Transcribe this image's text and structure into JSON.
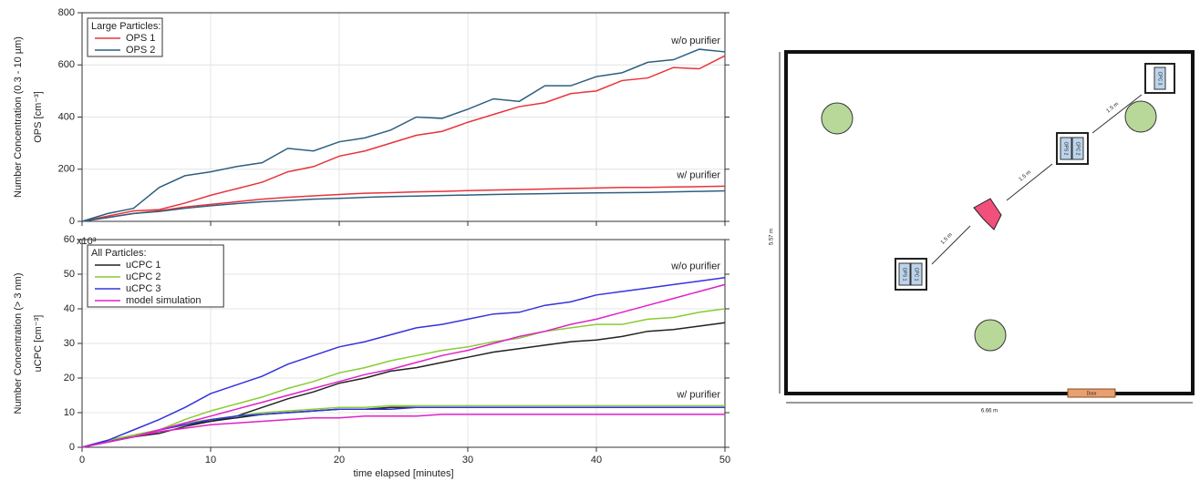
{
  "chart_data": [
    {
      "type": "line",
      "y_label": [
        "Number Concentration (0.3 - 10 µm)",
        "OPS [cm⁻³]"
      ],
      "legend_title": "Large Particles:",
      "legend": "upper left",
      "x": [
        0,
        2,
        4,
        6,
        8,
        10,
        12,
        14,
        16,
        18,
        20,
        22,
        24,
        26,
        28,
        30,
        32,
        34,
        36,
        38,
        40,
        42,
        44,
        46,
        48,
        50
      ],
      "xlim": [
        0,
        50
      ],
      "xticks": [
        0,
        10,
        20,
        30,
        40,
        50
      ],
      "show_xtick_labels": false,
      "ylim": [
        0,
        800
      ],
      "yticks": [
        0,
        200,
        400,
        600,
        800
      ],
      "grid": true,
      "annotations": {
        "without": "w/o purifier",
        "with": "w/ purifier"
      },
      "series": [
        {
          "name": "OPS 1",
          "color": "#e8333a",
          "values": [
            0,
            20,
            40,
            45,
            70,
            100,
            125,
            150,
            190,
            210,
            250,
            270,
            300,
            330,
            345,
            380,
            410,
            440,
            455,
            490,
            500,
            540,
            550,
            590,
            585,
            635
          ],
          "values_with_purifier": [
            0,
            15,
            30,
            40,
            55,
            65,
            75,
            85,
            92,
            98,
            103,
            108,
            110,
            113,
            115,
            118,
            120,
            122,
            124,
            126,
            128,
            130,
            130,
            132,
            133,
            135
          ]
        },
        {
          "name": "OPS 2",
          "color": "#2f5f7f",
          "values": [
            0,
            30,
            50,
            130,
            175,
            190,
            210,
            225,
            280,
            270,
            305,
            320,
            350,
            400,
            395,
            430,
            470,
            460,
            520,
            520,
            555,
            570,
            610,
            620,
            660,
            650
          ],
          "values_with_purifier": [
            0,
            15,
            30,
            38,
            50,
            60,
            68,
            75,
            80,
            85,
            88,
            92,
            95,
            97,
            99,
            101,
            103,
            105,
            106,
            108,
            109,
            110,
            111,
            113,
            115,
            117
          ]
        }
      ]
    },
    {
      "type": "line",
      "y_label": [
        "Number Concentration (> 3 nm)",
        "uCPC [cm⁻³]"
      ],
      "x_label": "time elapsed [minutes]",
      "y_multiplier": "x10³",
      "legend_title": "All Particles:",
      "legend": "upper left",
      "x": [
        0,
        2,
        4,
        6,
        8,
        10,
        12,
        14,
        16,
        18,
        20,
        22,
        24,
        26,
        28,
        30,
        32,
        34,
        36,
        38,
        40,
        42,
        44,
        46,
        48,
        50
      ],
      "xlim": [
        0,
        50
      ],
      "xticks": [
        0,
        10,
        20,
        30,
        40,
        50
      ],
      "show_xtick_labels": true,
      "ylim": [
        0,
        60
      ],
      "yticks": [
        0,
        10,
        20,
        30,
        40,
        50,
        60
      ],
      "grid": true,
      "annotations": {
        "without": "w/o purifier",
        "with": "w/ purifier"
      },
      "series": [
        {
          "name": "uCPC 1",
          "color": "#222222",
          "values": [
            0,
            2,
            3,
            4,
            6,
            7.5,
            9,
            11.5,
            14,
            16,
            18.5,
            20,
            22,
            23,
            24.5,
            26,
            27.5,
            28.5,
            29.5,
            30.5,
            31,
            32,
            33.5,
            34,
            35,
            36
          ],
          "values_with_purifier": [
            0,
            2,
            3.5,
            5,
            6.5,
            7.5,
            8.5,
            9.5,
            10,
            10.5,
            11,
            11,
            11.5,
            11.5,
            11.5,
            11.5,
            11.5,
            11.5,
            11.5,
            11.5,
            11.5,
            11.5,
            11.5,
            11.5,
            11.5,
            11.5
          ]
        },
        {
          "name": "uCPC 2",
          "color": "#88cc33",
          "values": [
            0,
            2,
            3.5,
            5,
            8,
            10.5,
            12.5,
            14.5,
            17,
            19,
            21.5,
            23,
            25,
            26.5,
            28,
            29,
            30.5,
            31.5,
            33.5,
            34.5,
            35.5,
            35.5,
            37,
            37.5,
            39,
            40
          ],
          "values_with_purifier": [
            0,
            2,
            3.5,
            5,
            7,
            8,
            9,
            10,
            10.5,
            11,
            11.5,
            11.5,
            12,
            12,
            12,
            12,
            12,
            12,
            12,
            12,
            12,
            12,
            12,
            12,
            12,
            12
          ]
        },
        {
          "name": "uCPC 3",
          "color": "#3333dd",
          "values": [
            0,
            2,
            5,
            8,
            11.5,
            15.5,
            18,
            20.5,
            24,
            26.5,
            29,
            30.5,
            32.5,
            34.5,
            35.5,
            37,
            38.5,
            39,
            41,
            42,
            44,
            45,
            46,
            47,
            48,
            49
          ],
          "values_with_purifier": [
            0,
            1.5,
            3,
            5,
            6.5,
            8,
            9,
            9.5,
            10,
            10.5,
            11,
            11,
            11,
            11.5,
            11.5,
            11.5,
            11.5,
            11.5,
            11.5,
            11.5,
            11.5,
            11.5,
            11.5,
            11.5,
            11.5,
            11.5
          ]
        },
        {
          "name": "model simulation",
          "color": "#e020c8",
          "values": [
            0,
            1.5,
            3,
            5,
            7,
            9,
            11,
            13,
            15,
            17,
            19,
            21,
            22.5,
            24.5,
            26.5,
            28,
            30,
            32,
            33.5,
            35.5,
            37,
            39,
            41,
            43,
            45,
            47
          ],
          "values_with_purifier": [
            0,
            1.5,
            3,
            4.5,
            5.5,
            6.5,
            7,
            7.5,
            8,
            8.5,
            8.5,
            9,
            9,
            9,
            9.5,
            9.5,
            9.5,
            9.5,
            9.5,
            9.5,
            9.5,
            9.5,
            9.5,
            9.5,
            9.5,
            9.5
          ]
        }
      ]
    }
  ],
  "diagram": {
    "room": {
      "width_label": "6.66 m",
      "height_label": "5.57 m",
      "door": "Door"
    },
    "stations": [
      {
        "labels": [
          "OPS 1",
          "CPC 1"
        ]
      },
      {
        "labels": [
          "OPS 2",
          "CPC 2"
        ]
      },
      {
        "labels": [
          "CPC 3"
        ]
      }
    ],
    "distances": [
      "1.5 m",
      "1.5 m",
      "1.5 m"
    ]
  }
}
